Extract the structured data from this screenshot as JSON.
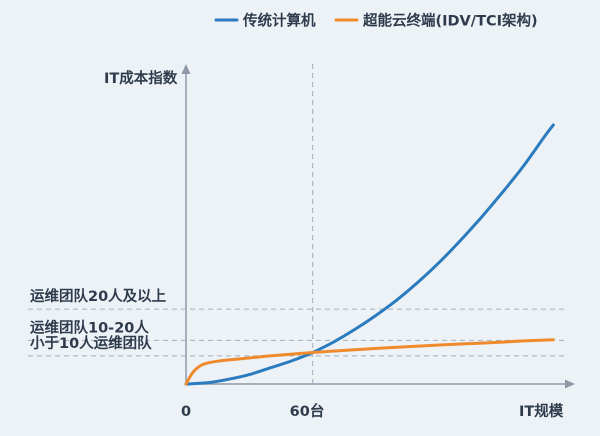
{
  "chart_data": {
    "type": "line",
    "ylabel": "IT成本指数",
    "xlabel": "IT规模",
    "x_ticks": [
      {
        "label": "0",
        "x": 0
      },
      {
        "label": "60台",
        "x": 60
      }
    ],
    "xlim": [
      0,
      180
    ],
    "ylim": [
      0,
      100
    ],
    "y_levels": [
      {
        "label": "运维团队20人及以上",
        "y": 24
      },
      {
        "label": "运维团队10-20人",
        "y": 14
      },
      {
        "label": "小于10人运维团队",
        "y": 9
      }
    ],
    "legend_position": "top-right",
    "grid": false,
    "series": [
      {
        "name": "传统计算机",
        "color": "#2a7bbf",
        "x": [
          0,
          10,
          20,
          30,
          40,
          50,
          60,
          70,
          80,
          90,
          100,
          110,
          120,
          130,
          140,
          150,
          160,
          170,
          174
        ],
        "y": [
          0,
          0.4,
          1.5,
          3.0,
          5.2,
          7.4,
          10.1,
          13.5,
          17.5,
          22.0,
          27.0,
          32.7,
          39.0,
          46.0,
          53.5,
          61.5,
          70.0,
          79.5,
          83
        ]
      },
      {
        "name": "超能云终端(IDV/TCI架构)",
        "color": "#ee8a2c",
        "x": [
          0,
          3,
          6,
          9,
          15,
          25,
          40,
          60,
          80,
          100,
          120,
          140,
          160,
          174
        ],
        "y": [
          0,
          3.5,
          5.5,
          6.5,
          7.3,
          8.0,
          9.0,
          10.1,
          11.0,
          11.8,
          12.5,
          13.1,
          13.8,
          14.2
        ]
      }
    ]
  }
}
